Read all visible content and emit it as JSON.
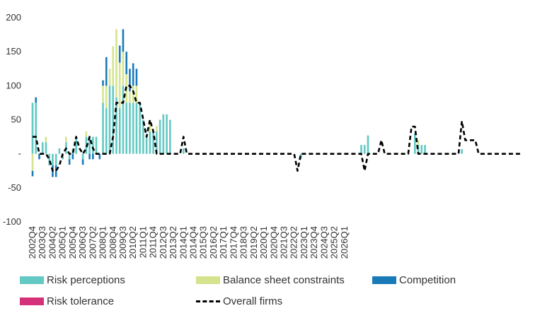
{
  "chart_data": {
    "type": "bar",
    "stacked": true,
    "ylim": [
      -100,
      200
    ],
    "yticks": [
      -100,
      -50,
      0,
      50,
      100,
      150,
      200
    ],
    "ytick_labels": [
      "-100",
      "-50",
      "-",
      "50",
      "100",
      "150",
      "200"
    ],
    "grid": false,
    "legend_position": "bottom",
    "start_quarter": "2002Q4",
    "x_tick_labels": [
      "2002Q4",
      "2003Q3",
      "2004Q2",
      "2005Q1",
      "2005Q4",
      "2006Q3",
      "2007Q2",
      "2008Q1",
      "2008Q4",
      "2009Q3",
      "2010Q2",
      "2011Q1",
      "2011Q4",
      "2012Q3",
      "2013Q2",
      "2014Q1",
      "2014Q4",
      "2015Q3",
      "2016Q2",
      "2017Q1",
      "2017Q4",
      "2018Q3",
      "2019Q2",
      "2020Q1",
      "2020Q4",
      "2021Q3",
      "2022Q2",
      "2023Q1",
      "2023Q4",
      "2024Q3",
      "2025Q2",
      "2026Q1"
    ],
    "series": [
      {
        "name": "Risk perceptions",
        "color": "#62c9c3",
        "values": [
          75,
          75,
          0,
          17,
          17,
          -17,
          -17,
          -17,
          8,
          -8,
          17,
          -8,
          8,
          25,
          0,
          -8,
          25,
          25,
          25,
          25,
          0,
          75,
          67,
          100,
          100,
          83,
          67,
          100,
          75,
          75,
          75,
          75,
          75,
          50,
          25,
          33,
          33,
          33,
          50,
          58,
          58,
          50,
          0,
          0,
          0,
          8,
          0,
          0,
          0,
          0,
          0,
          0,
          0,
          0,
          0,
          0,
          0,
          0,
          0,
          0,
          0,
          0,
          0,
          0,
          0,
          0,
          0,
          0,
          0,
          0,
          0,
          0,
          0,
          0,
          0,
          0,
          0,
          0,
          0,
          0,
          -8,
          0,
          0,
          0,
          0,
          0,
          0,
          0,
          0,
          0,
          0,
          0,
          0,
          0,
          0,
          0,
          0,
          0,
          13,
          13,
          27,
          0,
          0,
          0,
          0,
          0,
          0,
          0,
          0,
          0,
          0,
          0,
          0,
          0,
          30,
          13,
          13,
          13,
          0,
          0,
          0,
          0,
          0,
          0,
          0,
          0,
          0,
          0,
          7,
          0,
          0,
          0,
          0,
          0
        ]
      },
      {
        "name": "Balance sheet constraints",
        "color": "#d4e48e",
        "values": [
          -25,
          0,
          0,
          0,
          8,
          0,
          0,
          0,
          0,
          0,
          8,
          0,
          0,
          0,
          0,
          0,
          8,
          0,
          0,
          0,
          0,
          25,
          33,
          25,
          58,
          100,
          67,
          50,
          42,
          17,
          25,
          25,
          0,
          0,
          0,
          17,
          0,
          8,
          0,
          0,
          0,
          0,
          0,
          0,
          0,
          0,
          0,
          0,
          0,
          0,
          0,
          0,
          0,
          0,
          0,
          0,
          0,
          0,
          0,
          0,
          0,
          0,
          0,
          0,
          0,
          0,
          0,
          0,
          0,
          0,
          0,
          0,
          0,
          0,
          0,
          0,
          0,
          0,
          0,
          0,
          0,
          0,
          0,
          0,
          0,
          0,
          0,
          0,
          0,
          0,
          0,
          0,
          0,
          0,
          0,
          0,
          0,
          0,
          0,
          0,
          0,
          0,
          0,
          0,
          0,
          0,
          0,
          0,
          0,
          0,
          0,
          0,
          0,
          0,
          0,
          7,
          0,
          0,
          0,
          0,
          0,
          0,
          0,
          0,
          0,
          0,
          0,
          0,
          0,
          0,
          0,
          0,
          0,
          0,
          0,
          0,
          0
        ]
      },
      {
        "name": "Competition",
        "color": "#1a7ab8",
        "values": [
          -8,
          8,
          -8,
          0,
          0,
          0,
          -17,
          -17,
          0,
          0,
          0,
          -8,
          -8,
          0,
          0,
          -8,
          0,
          -8,
          -8,
          0,
          -8,
          8,
          42,
          0,
          0,
          0,
          25,
          33,
          33,
          33,
          33,
          25,
          0,
          0,
          0,
          0,
          0,
          0,
          0,
          0,
          0,
          0,
          0,
          0,
          0,
          0,
          0,
          0,
          0,
          0,
          0,
          0,
          0,
          0,
          0,
          0,
          0,
          0,
          0,
          0,
          0,
          0,
          0,
          0,
          0,
          0,
          0,
          0,
          0,
          0,
          0,
          0,
          0,
          0,
          0,
          0,
          0,
          0,
          0,
          0,
          0,
          0,
          0,
          0,
          0,
          0,
          0,
          0,
          0,
          0,
          0,
          0,
          0,
          0,
          0,
          0,
          0,
          0,
          0,
          0,
          0,
          0,
          0,
          0,
          0,
          0,
          0,
          0,
          0,
          0,
          0,
          0,
          0,
          0,
          0,
          0,
          0,
          0,
          0,
          0,
          0,
          0,
          0,
          0,
          0,
          0,
          0,
          0,
          0,
          0,
          0,
          0,
          0,
          0,
          0,
          0,
          0
        ]
      },
      {
        "name": "Risk tolerance",
        "color": "#d4317a",
        "values": [
          0,
          0,
          0,
          0,
          0,
          0,
          0,
          0,
          0,
          0,
          0,
          0,
          0,
          0,
          0,
          0,
          0,
          0,
          0,
          0,
          0,
          0,
          0,
          0,
          0,
          0,
          0,
          0,
          0,
          0,
          0,
          0,
          0,
          0,
          0,
          0,
          0,
          0,
          0,
          0,
          0,
          0,
          0,
          0,
          0,
          0,
          0,
          0,
          0,
          0,
          0,
          0,
          0,
          0,
          0,
          0,
          0,
          0,
          0,
          0,
          0,
          0,
          0,
          0,
          0,
          0,
          0,
          0,
          0,
          0,
          0,
          0,
          0,
          0,
          0,
          0,
          0,
          0,
          0,
          0,
          0,
          0,
          0,
          0,
          0,
          0,
          0,
          0,
          0,
          0,
          0,
          0,
          0,
          0,
          0,
          0,
          0,
          0,
          0,
          0,
          0,
          0,
          0,
          0,
          0,
          0,
          0,
          0,
          0,
          0,
          0,
          0,
          0,
          0,
          0,
          0,
          0,
          0,
          0,
          0,
          0,
          0,
          0,
          0,
          0,
          0,
          0,
          0,
          0,
          0,
          0,
          0,
          0,
          0,
          0,
          0,
          0
        ]
      }
    ],
    "line": {
      "name": "Overall firms",
      "color": "#000000",
      "values": [
        25,
        25,
        0,
        0,
        0,
        -8,
        -25,
        -25,
        -17,
        0,
        8,
        0,
        0,
        25,
        8,
        0,
        8,
        25,
        8,
        0,
        0,
        0,
        0,
        0,
        25,
        75,
        75,
        75,
        100,
        100,
        92,
        75,
        75,
        50,
        25,
        50,
        33,
        0,
        0,
        0,
        0,
        0,
        0,
        0,
        0,
        25,
        0,
        0,
        0,
        0,
        0,
        0,
        0,
        0,
        0,
        0,
        0,
        0,
        0,
        0,
        0,
        0,
        0,
        0,
        0,
        0,
        0,
        0,
        0,
        0,
        0,
        0,
        0,
        0,
        0,
        0,
        0,
        0,
        0,
        -25,
        0,
        0,
        0,
        0,
        0,
        0,
        0,
        0,
        0,
        0,
        0,
        0,
        0,
        0,
        0,
        0,
        0,
        0,
        0,
        -25,
        0,
        0,
        0,
        0,
        20,
        0,
        0,
        0,
        0,
        0,
        0,
        0,
        0,
        40,
        40,
        0,
        0,
        0,
        0,
        0,
        0,
        0,
        0,
        0,
        0,
        0,
        0,
        0,
        48,
        20,
        20,
        20,
        20,
        0,
        0,
        0,
        0,
        0,
        0,
        0,
        0,
        0,
        0,
        0,
        0,
        0,
        0
      ]
    }
  },
  "legend": {
    "items": [
      {
        "label": "Risk perceptions",
        "color": "#62c9c3"
      },
      {
        "label": "Balance sheet constraints",
        "color": "#d4e48e"
      },
      {
        "label": "Competition",
        "color": "#1a7ab8"
      },
      {
        "label": "Risk tolerance",
        "color": "#d4317a"
      },
      {
        "label": "Overall firms",
        "color": "#000000"
      }
    ]
  }
}
